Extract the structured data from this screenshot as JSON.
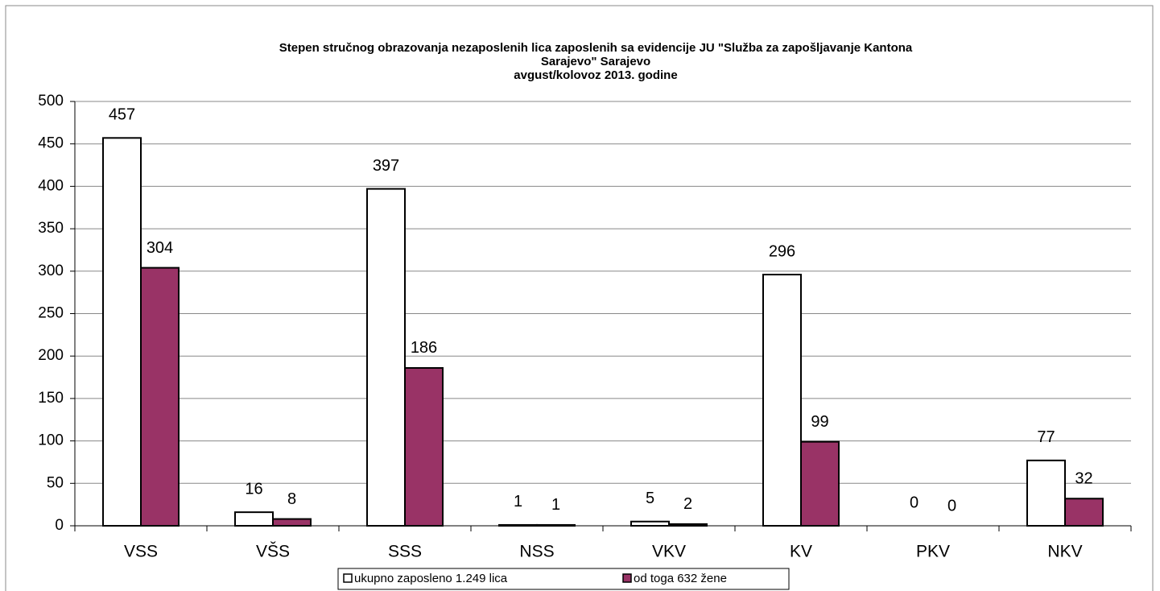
{
  "chart_data": {
    "type": "bar",
    "title": [
      "Stepen stručnog obrazovanja  nezaposlenih  lica zaposlenih sa evidencije JU \"Služba za zapošljavanje Kantona",
      "Sarajevo\"  Sarajevo",
      "avgust/kolovoz 2013. godine"
    ],
    "categories": [
      "VSS",
      "VŠS",
      "SSS",
      "NSS",
      "VKV",
      "KV",
      "PKV",
      "NKV"
    ],
    "series": [
      {
        "name": "ukupno zaposleno 1.249 lica",
        "color": "#ffffff",
        "values": [
          457,
          16,
          397,
          1,
          5,
          296,
          0,
          77
        ]
      },
      {
        "name": "od toga 632 žene",
        "color": "#993366",
        "values": [
          304,
          8,
          186,
          1,
          2,
          99,
          0,
          32
        ]
      }
    ],
    "ylim": [
      0,
      500
    ],
    "yticks": [
      0,
      50,
      100,
      150,
      200,
      250,
      300,
      350,
      400,
      450,
      500
    ],
    "grid": true,
    "legend": "bottom"
  }
}
